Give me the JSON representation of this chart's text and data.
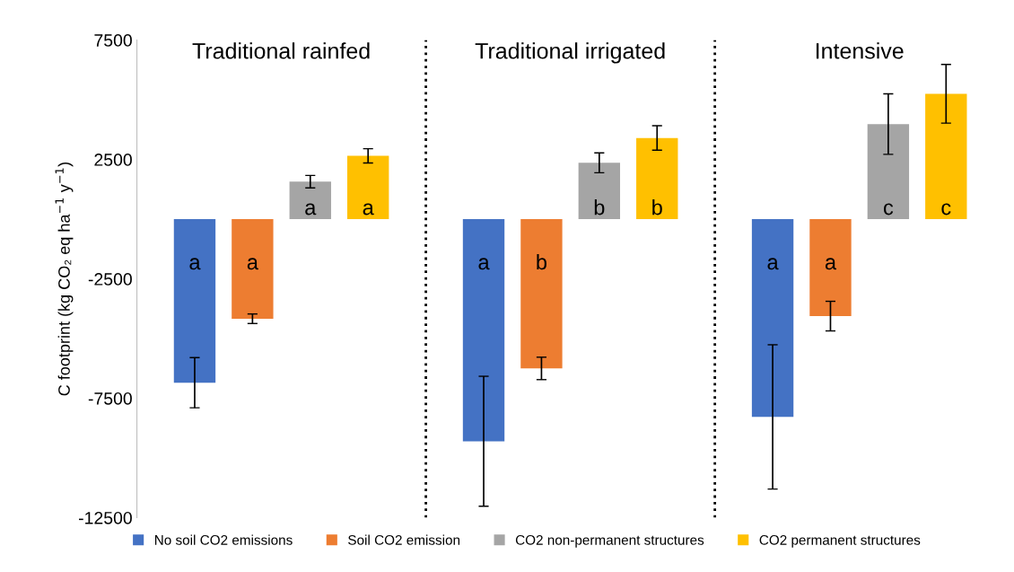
{
  "chart_data": {
    "type": "bar",
    "ylabel": "C footprint (kg CO₂ eq ha$^{−1}$ y$^{−1}$)",
    "categories": [
      "Traditional rainfed",
      "Traditional irrigated",
      "Intensive"
    ],
    "series": [
      {
        "name": "No soil CO2 emissions",
        "color": "#4472c4",
        "values": [
          -6850,
          -9300,
          -8280
        ],
        "errors": [
          1050,
          2720,
          3020
        ],
        "value_labels": [
          "a",
          "a",
          "a"
        ]
      },
      {
        "name": "Soil CO2 emission",
        "color": "#ed7d31",
        "values": [
          -4170,
          -6250,
          -4060
        ],
        "errors": [
          200,
          470,
          620
        ],
        "value_labels": [
          "a",
          "b",
          "a"
        ]
      },
      {
        "name": "CO2 non-permanent structures",
        "color": "#a5a5a5",
        "values": [
          1570,
          2360,
          3980
        ],
        "errors": [
          260,
          415,
          1265
        ],
        "value_labels": [
          "a",
          "b",
          "c"
        ]
      },
      {
        "name": "CO2 permanent structures",
        "color": "#ffc000",
        "values": [
          2650,
          3400,
          5250
        ],
        "errors": [
          300,
          510,
          1230
        ],
        "value_labels": [
          "a",
          "b",
          "c"
        ]
      }
    ],
    "ylim": [
      -12500,
      7500
    ],
    "yticks": [
      -12500,
      -7500,
      -2500,
      2500,
      7500
    ],
    "grid": false,
    "legend": "bottom",
    "tick_labels": "y"
  }
}
